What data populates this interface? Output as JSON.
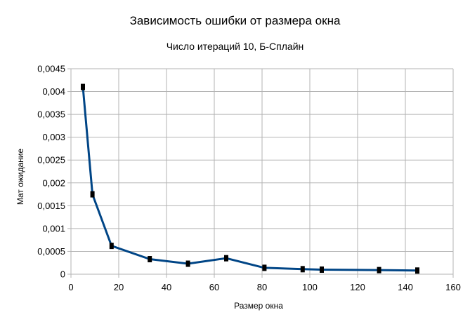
{
  "chart_data": {
    "type": "line",
    "title": "Зависимость ошибки от размера окна",
    "subtitle": "Число итераций 10, Б-Сплайн",
    "xlabel": "Размер окна",
    "ylabel": "Мат ожидание",
    "xlim": [
      0,
      160
    ],
    "ylim": [
      0,
      0.0045
    ],
    "x_ticks": [
      0,
      20,
      40,
      60,
      80,
      100,
      120,
      140,
      160
    ],
    "x_tick_labels": [
      "0",
      "20",
      "40",
      "60",
      "80",
      "100",
      "120",
      "140",
      "160"
    ],
    "y_ticks": [
      0,
      0.0005,
      0.001,
      0.0015,
      0.002,
      0.0025,
      0.003,
      0.0035,
      0.004,
      0.0045
    ],
    "y_tick_labels": [
      "0",
      "0,0005",
      "0,001",
      "0,0015",
      "0,002",
      "0,0025",
      "0,003",
      "0,0035",
      "0,004",
      "0,0045"
    ],
    "grid": true,
    "legend": "none",
    "line_color": "#004586",
    "marker_color": "#000000",
    "series": [
      {
        "x": [
          5,
          9,
          17,
          33,
          49,
          65,
          81,
          97,
          105,
          129,
          145
        ],
        "y": [
          0.0041,
          0.00175,
          0.00062,
          0.00033,
          0.00023,
          0.00035,
          0.00014,
          0.00011,
          0.0001,
          9e-05,
          8e-05
        ]
      }
    ]
  }
}
